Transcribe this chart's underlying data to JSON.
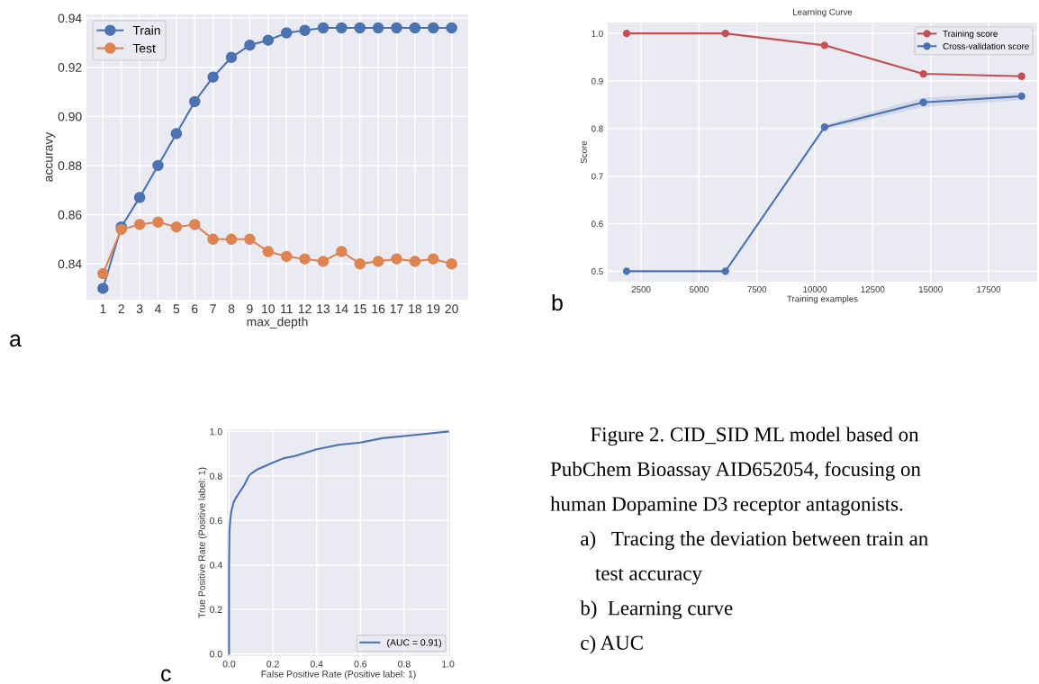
{
  "chart_data": [
    {
      "type": "line",
      "xlabel": "max_depth",
      "ylabel": "accuravy",
      "categories": [
        "1",
        "2",
        "3",
        "4",
        "5",
        "6",
        "7",
        "8",
        "9",
        "10",
        "11",
        "12",
        "13",
        "14",
        "15",
        "16",
        "17",
        "18",
        "19",
        "20"
      ],
      "series": [
        {
          "name": "Train",
          "color": "#4c72b0",
          "values": [
            0.83,
            0.855,
            0.867,
            0.88,
            0.893,
            0.906,
            0.916,
            0.924,
            0.929,
            0.931,
            0.934,
            0.935,
            0.936,
            0.936,
            0.936,
            0.936,
            0.936,
            0.936,
            0.936,
            0.936
          ]
        },
        {
          "name": "Test",
          "color": "#dd8452",
          "values": [
            0.836,
            0.854,
            0.856,
            0.857,
            0.855,
            0.856,
            0.85,
            0.85,
            0.85,
            0.845,
            0.843,
            0.842,
            0.841,
            0.845,
            0.84,
            0.841,
            0.842,
            0.841,
            0.842,
            0.84
          ]
        }
      ],
      "ylim": [
        0.8254,
        0.9415
      ],
      "yticks": [
        {
          "value": 0.84,
          "label": "0.84"
        },
        {
          "value": 0.86,
          "label": "0.86"
        },
        {
          "value": 0.88,
          "label": "0.88"
        },
        {
          "value": 0.9,
          "label": "0.90"
        },
        {
          "value": 0.92,
          "label": "0.92"
        },
        {
          "value": 0.94,
          "label": "0.94"
        }
      ],
      "grid": true,
      "legend": "top left",
      "marker": "circle",
      "line_style": "solid",
      "annotations": [
        "a"
      ]
    },
    {
      "type": "line",
      "title": "Learning Curve",
      "xlabel": "Training examples",
      "ylabel": "Score",
      "series": [
        {
          "name": "Training score",
          "color": "#c44e52",
          "x": [
            1875,
            6141,
            10421,
            14687,
            18927
          ],
          "values": [
            1.0,
            1.0,
            0.975,
            0.915,
            0.91
          ]
        },
        {
          "name": "Cross-validation score",
          "color": "#4c72b0",
          "x": [
            1875,
            6141,
            10421,
            14687,
            18927
          ],
          "values": [
            0.5,
            0.5,
            0.803,
            0.855,
            0.868
          ],
          "lower": [
            0.5,
            0.5,
            0.798,
            0.845,
            0.86
          ],
          "upper": [
            0.5,
            0.5,
            0.808,
            0.865,
            0.876
          ]
        }
      ],
      "xlim": [
        1060,
        19600
      ],
      "xticks": [
        2500,
        5000,
        7500,
        10000,
        12500,
        15000,
        17500
      ],
      "ylim": [
        0.478,
        1.023
      ],
      "yticks": [
        0.5,
        0.6,
        0.7,
        0.8,
        0.9,
        {
          "value": 1,
          "label": "1.0"
        }
      ],
      "grid": true,
      "legend": "top right",
      "marker": "circle",
      "line_style": "solid",
      "annotations": [
        "b"
      ]
    },
    {
      "type": "line",
      "xlabel": "False Positive Rate (Positive label: 1)",
      "ylabel": "True Positive Rate (Positive label: 1)",
      "series": [
        {
          "name": "(AUC = 0.91)",
          "color": "#4c72b0",
          "x": [
            0,
            0,
            0.002,
            0.005,
            0.01,
            0.02,
            0.03,
            0.05,
            0.07,
            0.08,
            0.09,
            0.1,
            0.13,
            0.2,
            0.25,
            0.3,
            0.4,
            0.5,
            0.6,
            0.7,
            0.8,
            0.9,
            1.0
          ],
          "values": [
            0,
            0.4,
            0.55,
            0.6,
            0.64,
            0.68,
            0.7,
            0.73,
            0.76,
            0.78,
            0.8,
            0.81,
            0.83,
            0.86,
            0.88,
            0.89,
            0.92,
            0.94,
            0.95,
            0.97,
            0.98,
            0.99,
            1.0
          ]
        }
      ],
      "xlim": [
        -0.01,
        1.01
      ],
      "xticks": [
        {
          "value": 0,
          "label": "0.0"
        },
        {
          "value": 0.2,
          "label": "0.2"
        },
        {
          "value": 0.4,
          "label": "0.4"
        },
        {
          "value": 0.6,
          "label": "0.6"
        },
        {
          "value": 0.8,
          "label": "0.8"
        },
        {
          "value": 1,
          "label": "1.0"
        }
      ],
      "ylim": [
        -0.01,
        1.01
      ],
      "yticks": [
        {
          "value": 0,
          "label": "0.0"
        },
        {
          "value": 0.2,
          "label": "0.2"
        },
        {
          "value": 0.4,
          "label": "0.4"
        },
        {
          "value": 0.6,
          "label": "0.6"
        },
        {
          "value": 0.8,
          "label": "0.8"
        },
        {
          "value": 1,
          "label": "1.0"
        }
      ],
      "grid": true,
      "legend": "bottom right",
      "line_style": "solid",
      "annotations": [
        "c"
      ]
    },
    {
      "type": "other",
      "annotations": [
        "Figure 2. CID_SID ML model based on",
        "PubChem Bioassay AID652054, focusing on",
        "human Dopamine D3 receptor antagonists.",
        "a)   Tracing the deviation between train an",
        "test accuracy",
        "b)  Learning curve",
        "c) AUC"
      ]
    }
  ]
}
